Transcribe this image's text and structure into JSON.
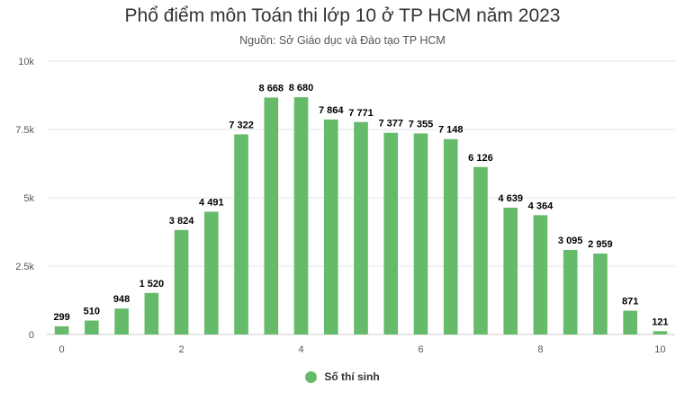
{
  "chart_data": {
    "type": "bar",
    "title": "Phổ điểm môn Toán thi lớp 10 ở TP HCM năm 2023",
    "subtitle": "Nguồn: Sở Giáo dục và Đào tạo TP HCM",
    "x": [
      0,
      0.5,
      1,
      1.5,
      2,
      2.5,
      3,
      3.5,
      4,
      4.5,
      5,
      5.5,
      6,
      6.5,
      7,
      7.5,
      8,
      8.5,
      9,
      9.5,
      10
    ],
    "value_labels": [
      "299",
      "510",
      "948",
      "1 520",
      "3 824",
      "4 491",
      "7 322",
      "8 668",
      "8 680",
      "7 864",
      "7 771",
      "7 377",
      "7 355",
      "7 148",
      "6 126",
      "4 639",
      "4 364",
      "3 095",
      "2 959",
      "871",
      "121"
    ],
    "series": [
      {
        "name": "Số thí sinh",
        "color": "#66bb6a",
        "values": [
          299,
          510,
          948,
          1520,
          3824,
          4491,
          7322,
          8668,
          8680,
          7864,
          7771,
          7377,
          7355,
          7148,
          6126,
          4639,
          4364,
          3095,
          2959,
          871,
          121
        ]
      }
    ],
    "xticks": [
      0,
      2,
      4,
      6,
      8,
      10
    ],
    "xtick_labels": [
      "0",
      "2",
      "4",
      "6",
      "8",
      "10"
    ],
    "yticks": [
      0,
      2500,
      5000,
      7500,
      10000
    ],
    "ytick_labels": [
      "0",
      "2.5k",
      "5k",
      "7.5k",
      "10k"
    ],
    "xlim": [
      -0.25,
      10.25
    ],
    "ylim": [
      0,
      10000
    ],
    "grid": true,
    "legend_position": "bottom-center"
  }
}
